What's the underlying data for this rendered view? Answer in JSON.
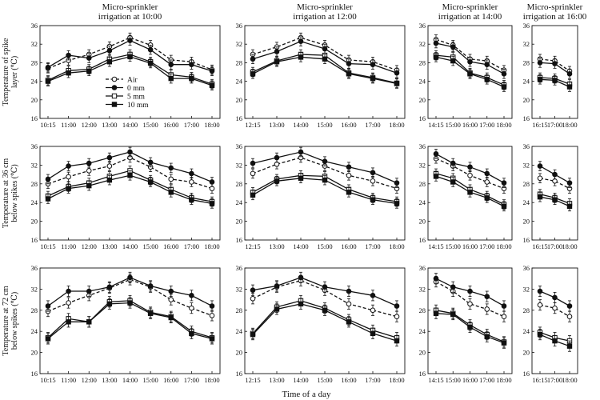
{
  "chart_data": {
    "type": "line",
    "figure_xlabel": "Time of a day",
    "y_ticks": [
      "16",
      "20",
      "24",
      "28",
      "32",
      "36"
    ],
    "ylim": [
      16,
      36
    ],
    "columns": [
      {
        "title_line1": "Micro-sprinkler",
        "title_line2": "irrigation at 10:00",
        "times": [
          "10:15",
          "11:00",
          "12:00",
          "13:00",
          "14:00",
          "15:00",
          "16:00",
          "17:00",
          "18:00"
        ]
      },
      {
        "title_line1": "Micro-sprinkler",
        "title_line2": "irrigation at 12:00",
        "times": [
          "12:15",
          "13:00",
          "14:00",
          "15:00",
          "16:00",
          "17:00",
          "18:00"
        ]
      },
      {
        "title_line1": "Micro-sprinkler",
        "title_line2": "irrigation at 14:00",
        "times": [
          "14:15",
          "15:00",
          "16:00",
          "17:00",
          "18:00"
        ]
      },
      {
        "title_line1": "Micro-sprinkler",
        "title_line2": "irrigation at 16:00",
        "times": [
          "16:15",
          "17:00",
          "18:00"
        ]
      }
    ],
    "rows": [
      {
        "ylabel_line1": "Temperature of spike",
        "ylabel_line2": "layer (℃)"
      },
      {
        "ylabel_line1": "Temperature at 36 cm",
        "ylabel_line2": "below spikes (℃)"
      },
      {
        "ylabel_line1": "Temperature at 72 cm",
        "ylabel_line2": "below spikes (℃)"
      }
    ],
    "legend": [
      {
        "name": "Air",
        "style": "dashed-open-circle"
      },
      {
        "name": "0 mm",
        "style": "solid-filled-circle"
      },
      {
        "name": "5 mm",
        "style": "solid-open-square"
      },
      {
        "name": "10 mm",
        "style": "solid-filled-square"
      }
    ],
    "panels": [
      {
        "row": 0,
        "col": 0,
        "series": [
          {
            "name": "Air",
            "values": [
              26.8,
              28.5,
              29.8,
              31.5,
              33.4,
              31.8,
              28.6,
              28.2,
              26.5
            ]
          },
          {
            "name": "0 mm",
            "values": [
              27.0,
              29.6,
              29.0,
              30.6,
              32.8,
              30.8,
              27.6,
              27.6,
              26.2
            ]
          },
          {
            "name": "5 mm",
            "values": [
              24.2,
              26.3,
              26.6,
              28.8,
              29.8,
              28.2,
              25.4,
              24.9,
              23.4
            ]
          },
          {
            "name": "10 mm",
            "values": [
              24.0,
              25.8,
              26.2,
              28.2,
              29.3,
              27.9,
              24.6,
              24.6,
              23.1
            ]
          }
        ]
      },
      {
        "row": 0,
        "col": 1,
        "series": [
          {
            "name": "Air",
            "values": [
              29.8,
              31.4,
              33.4,
              31.8,
              28.6,
              28.2,
              26.4
            ]
          },
          {
            "name": "0 mm",
            "values": [
              28.8,
              30.4,
              32.6,
              31.0,
              27.8,
              27.6,
              25.8
            ]
          },
          {
            "name": "5 mm",
            "values": [
              26.0,
              28.4,
              29.8,
              29.6,
              25.8,
              24.8,
              23.6
            ]
          },
          {
            "name": "10 mm",
            "values": [
              25.6,
              28.2,
              29.2,
              28.8,
              25.6,
              24.6,
              23.5
            ]
          }
        ]
      },
      {
        "row": 0,
        "col": 2,
        "series": [
          {
            "name": "Air",
            "values": [
              33.0,
              31.8,
              28.8,
              28.4,
              26.4
            ]
          },
          {
            "name": "0 mm",
            "values": [
              32.2,
              31.4,
              28.2,
              27.6,
              25.6
            ]
          },
          {
            "name": "5 mm",
            "values": [
              29.6,
              29.2,
              25.8,
              24.8,
              23.2
            ]
          },
          {
            "name": "10 mm",
            "values": [
              29.2,
              28.4,
              25.6,
              24.4,
              22.8
            ]
          }
        ]
      },
      {
        "row": 0,
        "col": 3,
        "series": [
          {
            "name": "Air",
            "values": [
              28.8,
              28.4,
              26.2
            ]
          },
          {
            "name": "0 mm",
            "values": [
              28.0,
              27.8,
              25.6
            ]
          },
          {
            "name": "5 mm",
            "values": [
              24.8,
              24.6,
              23.4
            ]
          },
          {
            "name": "10 mm",
            "values": [
              24.4,
              24.2,
              22.8
            ]
          }
        ]
      },
      {
        "row": 1,
        "col": 0,
        "series": [
          {
            "name": "Air",
            "values": [
              28.0,
              29.5,
              30.8,
              31.8,
              33.6,
              31.6,
              29.0,
              28.4,
              27.0
            ]
          },
          {
            "name": "0 mm",
            "values": [
              29.0,
              31.8,
              32.4,
              33.6,
              34.8,
              32.6,
              31.4,
              30.2,
              28.4
            ]
          },
          {
            "name": "5 mm",
            "values": [
              25.4,
              27.4,
              28.2,
              29.6,
              30.8,
              28.8,
              26.8,
              25.0,
              24.2
            ]
          },
          {
            "name": "10 mm",
            "values": [
              24.8,
              27.0,
              27.6,
              28.8,
              29.8,
              28.4,
              26.2,
              24.6,
              23.8
            ]
          }
        ]
      },
      {
        "row": 1,
        "col": 1,
        "series": [
          {
            "name": "Air",
            "values": [
              30.2,
              32.2,
              33.6,
              31.8,
              29.8,
              28.6,
              27.0
            ]
          },
          {
            "name": "0 mm",
            "values": [
              32.4,
              33.6,
              34.8,
              32.8,
              31.6,
              30.4,
              28.2
            ]
          },
          {
            "name": "5 mm",
            "values": [
              26.2,
              29.0,
              29.8,
              29.6,
              26.8,
              25.0,
              24.2
            ]
          },
          {
            "name": "10 mm",
            "values": [
              25.6,
              28.6,
              29.2,
              28.8,
              26.2,
              24.6,
              23.8
            ]
          }
        ]
      },
      {
        "row": 1,
        "col": 2,
        "series": [
          {
            "name": "Air",
            "values": [
              33.4,
              31.8,
              29.8,
              28.4,
              27.0
            ]
          },
          {
            "name": "0 mm",
            "values": [
              34.4,
              32.4,
              31.6,
              30.2,
              28.2
            ]
          },
          {
            "name": "5 mm",
            "values": [
              30.2,
              29.2,
              26.8,
              25.4,
              23.6
            ]
          },
          {
            "name": "10 mm",
            "values": [
              29.6,
              28.4,
              26.2,
              25.0,
              23.2
            ]
          }
        ]
      },
      {
        "row": 1,
        "col": 3,
        "series": [
          {
            "name": "Air",
            "values": [
              29.2,
              28.6,
              27.0
            ]
          },
          {
            "name": "0 mm",
            "values": [
              31.8,
              30.0,
              28.2
            ]
          },
          {
            "name": "5 mm",
            "values": [
              25.8,
              25.0,
              23.8
            ]
          },
          {
            "name": "10 mm",
            "values": [
              25.2,
              24.6,
              23.2
            ]
          }
        ]
      },
      {
        "row": 2,
        "col": 0,
        "series": [
          {
            "name": "Air",
            "values": [
              27.8,
              29.4,
              30.8,
              32.2,
              33.8,
              32.4,
              30.0,
              28.4,
              27.0
            ]
          },
          {
            "name": "0 mm",
            "values": [
              28.8,
              31.6,
              31.6,
              32.4,
              34.2,
              32.6,
              31.6,
              30.8,
              28.8
            ]
          },
          {
            "name": "5 mm",
            "values": [
              22.8,
              26.4,
              25.8,
              29.6,
              29.8,
              27.6,
              26.8,
              24.0,
              22.8
            ]
          },
          {
            "name": "10 mm",
            "values": [
              22.6,
              25.8,
              25.8,
              29.2,
              29.4,
              27.4,
              26.6,
              23.6,
              22.6
            ]
          }
        ]
      },
      {
        "row": 2,
        "col": 1,
        "series": [
          {
            "name": "Air",
            "values": [
              30.2,
              32.4,
              33.6,
              31.8,
              29.2,
              28.0,
              26.8
            ]
          },
          {
            "name": "0 mm",
            "values": [
              31.8,
              32.6,
              34.2,
              32.4,
              31.6,
              30.8,
              28.8
            ]
          },
          {
            "name": "5 mm",
            "values": [
              23.6,
              28.6,
              29.8,
              28.4,
              26.2,
              24.2,
              22.8
            ]
          },
          {
            "name": "10 mm",
            "values": [
              23.4,
              28.2,
              29.2,
              28.0,
              25.8,
              23.6,
              22.2
            ]
          }
        ]
      },
      {
        "row": 2,
        "col": 2,
        "series": [
          {
            "name": "Air",
            "values": [
              33.4,
              31.6,
              29.2,
              28.2,
              26.8
            ]
          },
          {
            "name": "0 mm",
            "values": [
              34.0,
              32.4,
              31.6,
              30.6,
              28.8
            ]
          },
          {
            "name": "5 mm",
            "values": [
              28.0,
              27.4,
              25.2,
              23.4,
              22.0
            ]
          },
          {
            "name": "10 mm",
            "values": [
              27.4,
              27.2,
              24.8,
              23.0,
              21.8
            ]
          }
        ]
      },
      {
        "row": 2,
        "col": 3,
        "series": [
          {
            "name": "Air",
            "values": [
              29.0,
              28.4,
              26.8
            ]
          },
          {
            "name": "0 mm",
            "values": [
              31.6,
              30.4,
              28.8
            ]
          },
          {
            "name": "5 mm",
            "values": [
              23.8,
              22.8,
              22.2
            ]
          },
          {
            "name": "10 mm",
            "values": [
              23.4,
              22.2,
              21.2
            ]
          }
        ]
      }
    ]
  }
}
